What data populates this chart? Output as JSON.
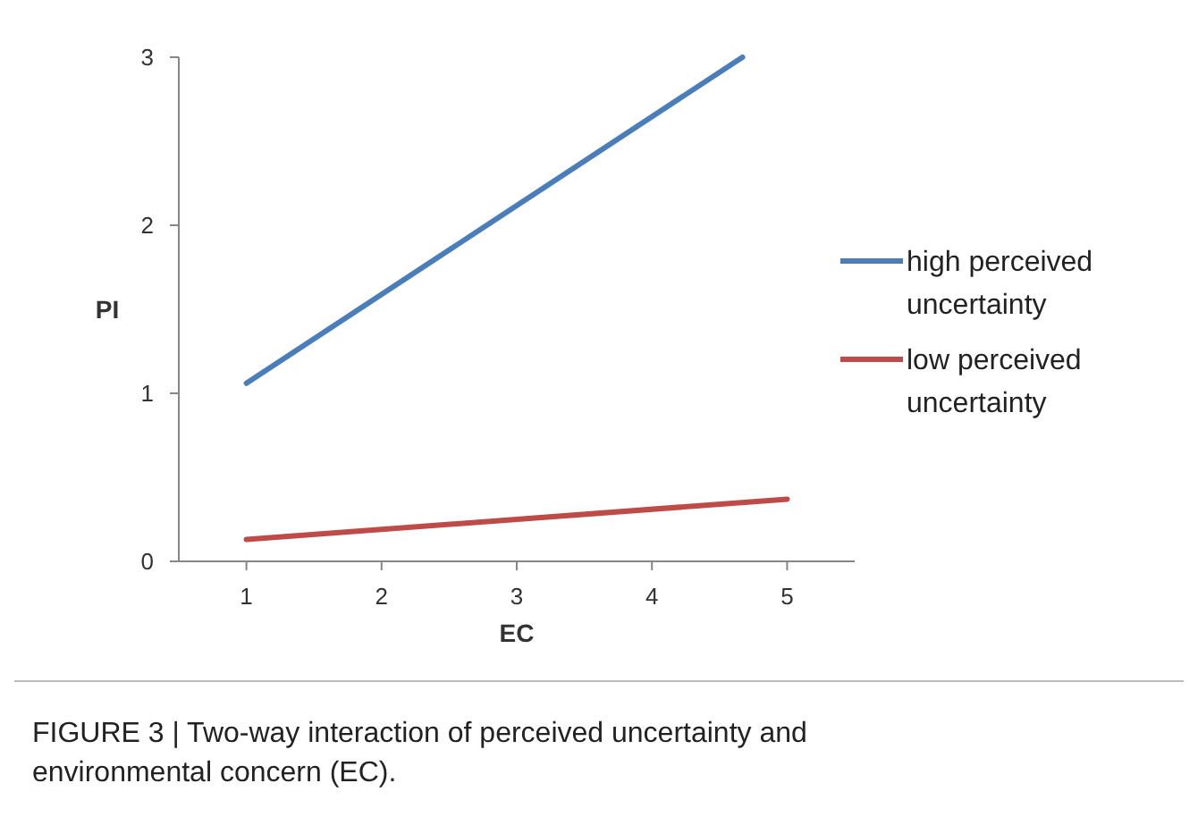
{
  "chart_data": {
    "type": "line",
    "xlabel": "EC",
    "ylabel": "PI",
    "xlim": [
      0.5,
      5.5
    ],
    "xticks": [
      1,
      2,
      3,
      4,
      5
    ],
    "ylim": [
      0,
      3
    ],
    "yticks": [
      0,
      1,
      2,
      3
    ],
    "grid": false,
    "legend": "right",
    "marker": "none",
    "line_style": "solid",
    "series": [
      {
        "name": "high perceived uncertainty",
        "color": "#4a7ebb",
        "x": [
          1,
          4.67
        ],
        "values": [
          1.06,
          3
        ]
      },
      {
        "name": "low perceived uncertainty",
        "color": "#be4b48",
        "x": [
          1,
          5
        ],
        "values": [
          0.13,
          0.37
        ]
      }
    ],
    "annotations": [
      "FIGURE 3 | Two-way interaction of perceived uncertainty and environmental concern (EC)."
    ]
  }
}
